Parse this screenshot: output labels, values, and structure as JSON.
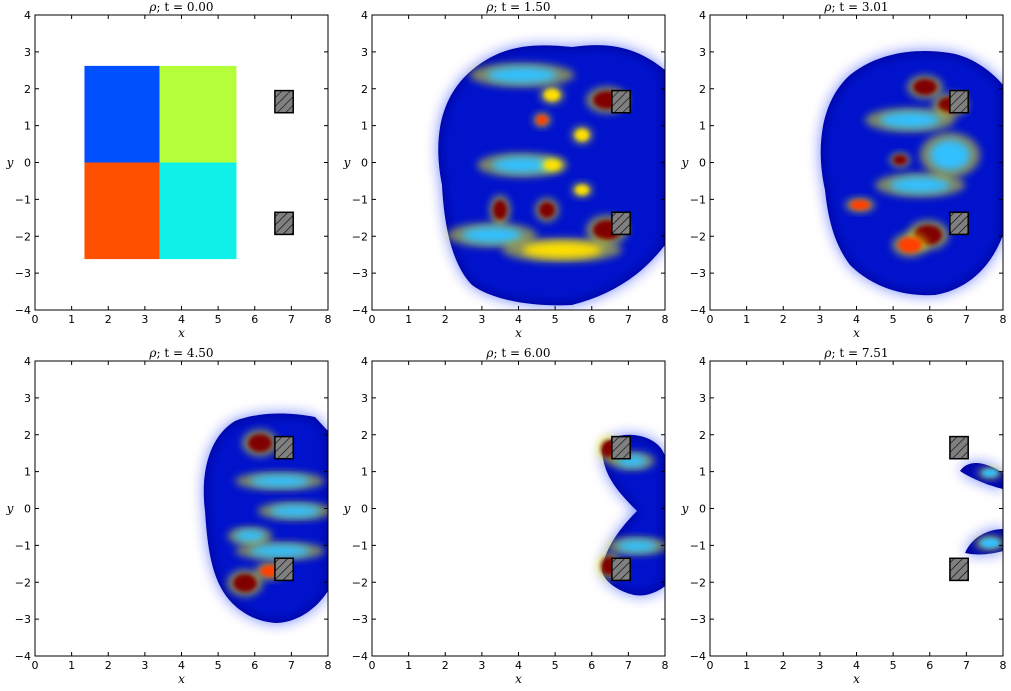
{
  "figure": {
    "background": "#ffffff"
  },
  "colors": {
    "colormap": "jet",
    "jet_dark_blue": "#00008f",
    "jet_dark_red": "#800000",
    "obstacle_fill": "#808080",
    "obstacle_stroke": "#000000"
  },
  "chart_data": [
    {
      "type": "heatmap",
      "title": "ρ; t = 0.00",
      "title_var": "ρ",
      "title_rest": "; t = 0.00",
      "xlabel": "x",
      "ylabel": "y",
      "xlim": [
        0,
        8
      ],
      "ylim": [
        -4,
        4
      ],
      "xticks": [
        0,
        1,
        2,
        3,
        4,
        5,
        6,
        7,
        8
      ],
      "yticks": [
        -4,
        -3,
        -2,
        -1,
        0,
        1,
        2,
        3,
        4
      ],
      "initial_quadrants": [
        {
          "x": [
            1.35,
            3.4
          ],
          "y": [
            0,
            2.62
          ],
          "color": "#0050ff"
        },
        {
          "x": [
            3.4,
            5.5
          ],
          "y": [
            0,
            2.62
          ],
          "color": "#b4ff3a"
        },
        {
          "x": [
            1.35,
            3.4
          ],
          "y": [
            -2.62,
            0
          ],
          "color": "#ff5000"
        },
        {
          "x": [
            3.4,
            5.5
          ],
          "y": [
            -2.62,
            0
          ],
          "color": "#0ff0e8"
        }
      ],
      "obstacles": [
        {
          "x": [
            6.55,
            7.05
          ],
          "y": [
            1.35,
            1.95
          ]
        },
        {
          "x": [
            6.55,
            7.05
          ],
          "y": [
            -1.95,
            -1.35
          ]
        }
      ]
    },
    {
      "type": "heatmap",
      "title": "ρ; t = 1.50",
      "title_var": "ρ",
      "title_rest": "; t = 1.50",
      "xlabel": "x",
      "ylabel": "y",
      "xlim": [
        0,
        8
      ],
      "ylim": [
        -4,
        4
      ],
      "xticks": [
        0,
        1,
        2,
        3,
        4,
        5,
        6,
        7,
        8
      ],
      "yticks": [
        -4,
        -3,
        -2,
        -1,
        0,
        1,
        2,
        3,
        4
      ],
      "obstacles": [
        {
          "x": [
            6.55,
            7.05
          ],
          "y": [
            1.35,
            1.95
          ]
        },
        {
          "x": [
            6.55,
            7.05
          ],
          "y": [
            -1.95,
            -1.35
          ]
        }
      ]
    },
    {
      "type": "heatmap",
      "title": "ρ; t = 3.01",
      "title_var": "ρ",
      "title_rest": "; t = 3.01",
      "xlabel": "x",
      "ylabel": "y",
      "xlim": [
        0,
        8
      ],
      "ylim": [
        -4,
        4
      ],
      "xticks": [
        0,
        1,
        2,
        3,
        4,
        5,
        6,
        7,
        8
      ],
      "yticks": [
        -4,
        -3,
        -2,
        -1,
        0,
        1,
        2,
        3,
        4
      ],
      "obstacles": [
        {
          "x": [
            6.55,
            7.05
          ],
          "y": [
            1.35,
            1.95
          ]
        },
        {
          "x": [
            6.55,
            7.05
          ],
          "y": [
            -1.95,
            -1.35
          ]
        }
      ]
    },
    {
      "type": "heatmap",
      "title": "ρ; t = 4.50",
      "title_var": "ρ",
      "title_rest": "; t = 4.50",
      "xlabel": "x",
      "ylabel": "y",
      "xlim": [
        0,
        8
      ],
      "ylim": [
        -4,
        4
      ],
      "xticks": [
        0,
        1,
        2,
        3,
        4,
        5,
        6,
        7,
        8
      ],
      "yticks": [
        -4,
        -3,
        -2,
        -1,
        0,
        1,
        2,
        3,
        4
      ],
      "obstacles": [
        {
          "x": [
            6.55,
            7.05
          ],
          "y": [
            1.35,
            1.95
          ]
        },
        {
          "x": [
            6.55,
            7.05
          ],
          "y": [
            -1.95,
            -1.35
          ]
        }
      ]
    },
    {
      "type": "heatmap",
      "title": "ρ; t = 6.00",
      "title_var": "ρ",
      "title_rest": "; t = 6.00",
      "xlabel": "x",
      "ylabel": "y",
      "xlim": [
        0,
        8
      ],
      "ylim": [
        -4,
        4
      ],
      "xticks": [
        0,
        1,
        2,
        3,
        4,
        5,
        6,
        7,
        8
      ],
      "yticks": [
        -4,
        -3,
        -2,
        -1,
        0,
        1,
        2,
        3,
        4
      ],
      "obstacles": [
        {
          "x": [
            6.55,
            7.05
          ],
          "y": [
            1.35,
            1.95
          ]
        },
        {
          "x": [
            6.55,
            7.05
          ],
          "y": [
            -1.95,
            -1.35
          ]
        }
      ]
    },
    {
      "type": "heatmap",
      "title": "ρ; t = 7.51",
      "title_var": "ρ",
      "title_rest": "; t = 7.51",
      "xlabel": "x",
      "ylabel": "y",
      "xlim": [
        0,
        8
      ],
      "ylim": [
        -4,
        4
      ],
      "xticks": [
        0,
        1,
        2,
        3,
        4,
        5,
        6,
        7,
        8
      ],
      "yticks": [
        -4,
        -3,
        -2,
        -1,
        0,
        1,
        2,
        3,
        4
      ],
      "obstacles": [
        {
          "x": [
            6.55,
            7.05
          ],
          "y": [
            1.35,
            1.95
          ]
        },
        {
          "x": [
            6.55,
            7.05
          ],
          "y": [
            -1.95,
            -1.35
          ]
        }
      ]
    }
  ]
}
